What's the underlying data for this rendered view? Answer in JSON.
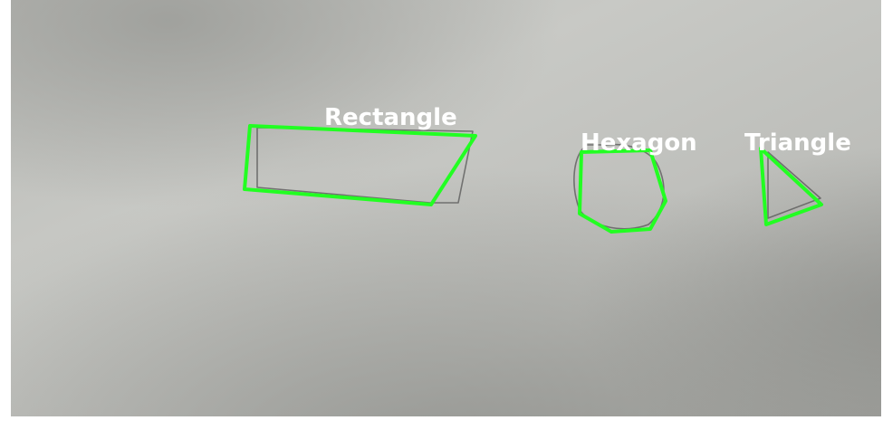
{
  "detections": [
    {
      "id": "rectangle",
      "label": "Rectangle"
    },
    {
      "id": "hexagon",
      "label": "Hexagon"
    },
    {
      "id": "triangle",
      "label": "Triangle"
    }
  ],
  "colors": {
    "detection": "#22ff22",
    "label": "#ffffff",
    "pencil": "#555555"
  }
}
